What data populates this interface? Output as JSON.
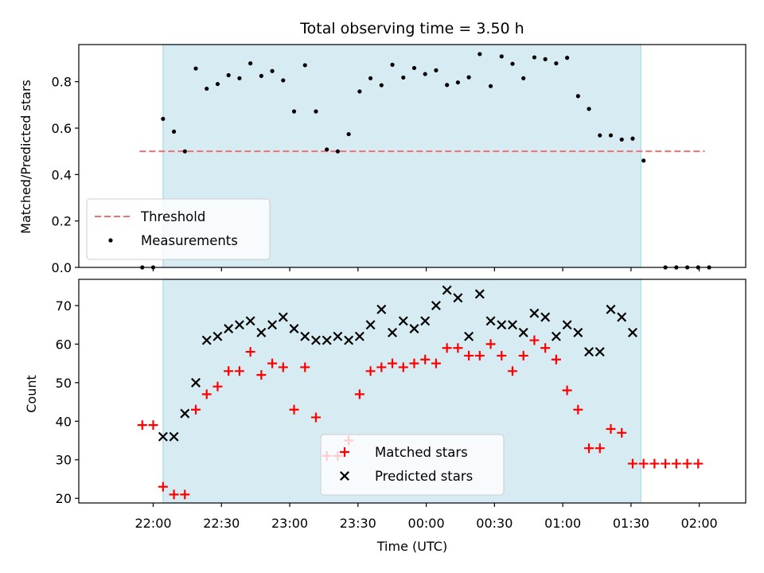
{
  "chart_data": {
    "title": "Total observing time = 3.50 h",
    "xlabel": "Time (UTC)",
    "x_unit": "hours after 21:00 UTC on the x axis (22:00 = 1.0)",
    "xlim": [
      0.455,
      5.34
    ],
    "xticks": [
      {
        "value": 1.0,
        "label": "22:00"
      },
      {
        "value": 1.5,
        "label": "22:30"
      },
      {
        "value": 2.0,
        "label": "23:00"
      },
      {
        "value": 2.5,
        "label": "23:30"
      },
      {
        "value": 3.0,
        "label": "00:00"
      },
      {
        "value": 3.5,
        "label": "00:30"
      },
      {
        "value": 4.0,
        "label": "01:00"
      },
      {
        "value": 4.5,
        "label": "01:30"
      },
      {
        "value": 5.0,
        "label": "02:00"
      }
    ],
    "observing_window": {
      "start": 1.072,
      "end": 4.572,
      "color": "#add8e6"
    },
    "panels": [
      {
        "type": "scatter",
        "ylabel": "Matched/Predicted stars",
        "ylim": [
          0.0,
          0.96
        ],
        "yticks": [
          {
            "value": 0.0,
            "label": "0.0"
          },
          {
            "value": 0.2,
            "label": "0.2"
          },
          {
            "value": 0.4,
            "label": "0.4"
          },
          {
            "value": 0.6,
            "label": "0.6"
          },
          {
            "value": 0.8,
            "label": "0.8"
          }
        ],
        "threshold": {
          "name": "Threshold",
          "y": 0.5,
          "x_start": 0.9,
          "x_end": 5.04,
          "color": "#f07070"
        },
        "series": [
          {
            "name": "Measurements",
            "marker": "dot",
            "color": "#000000",
            "points": [
              [
                0.92,
                0.0
              ],
              [
                1.0,
                0.0
              ],
              [
                1.072,
                0.64
              ],
              [
                1.152,
                0.585
              ],
              [
                1.232,
                0.5
              ],
              [
                1.312,
                0.857
              ],
              [
                1.392,
                0.77
              ],
              [
                1.472,
                0.79
              ],
              [
                1.552,
                0.828
              ],
              [
                1.632,
                0.815
              ],
              [
                1.712,
                0.879
              ],
              [
                1.792,
                0.825
              ],
              [
                1.872,
                0.846
              ],
              [
                1.952,
                0.806
              ],
              [
                2.032,
                0.672
              ],
              [
                2.112,
                0.871
              ],
              [
                2.192,
                0.672
              ],
              [
                2.272,
                0.508
              ],
              [
                2.352,
                0.5
              ],
              [
                2.432,
                0.574
              ],
              [
                2.512,
                0.758
              ],
              [
                2.592,
                0.815
              ],
              [
                2.672,
                0.785
              ],
              [
                2.752,
                0.873
              ],
              [
                2.832,
                0.818
              ],
              [
                2.912,
                0.859
              ],
              [
                2.992,
                0.833
              ],
              [
                3.072,
                0.849
              ],
              [
                3.152,
                0.786
              ],
              [
                3.232,
                0.797
              ],
              [
                3.312,
                0.819
              ],
              [
                3.392,
                0.919
              ],
              [
                3.472,
                0.781
              ],
              [
                3.552,
                0.909
              ],
              [
                3.632,
                0.877
              ],
              [
                3.712,
                0.815
              ],
              [
                3.792,
                0.905
              ],
              [
                3.872,
                0.897
              ],
              [
                3.952,
                0.879
              ],
              [
                4.032,
                0.903
              ],
              [
                4.112,
                0.738
              ],
              [
                4.192,
                0.683
              ],
              [
                4.272,
                0.569
              ],
              [
                4.352,
                0.569
              ],
              [
                4.432,
                0.551
              ],
              [
                4.512,
                0.555
              ],
              [
                4.592,
                0.46
              ],
              [
                4.752,
                0.0
              ],
              [
                4.832,
                0.0
              ],
              [
                4.912,
                0.0
              ],
              [
                4.992,
                0.0
              ],
              [
                5.072,
                0.0
              ]
            ]
          }
        ],
        "legend": {
          "position": "lower-left",
          "entries": [
            "Threshold",
            "Measurements"
          ]
        }
      },
      {
        "type": "scatter",
        "ylabel": "Count",
        "ylim": [
          18.8,
          76.8
        ],
        "yticks": [
          {
            "value": 20,
            "label": "20"
          },
          {
            "value": 30,
            "label": "30"
          },
          {
            "value": 40,
            "label": "40"
          },
          {
            "value": 50,
            "label": "50"
          },
          {
            "value": 60,
            "label": "60"
          },
          {
            "value": 70,
            "label": "70"
          }
        ],
        "series": [
          {
            "name": "Matched stars",
            "marker": "plus",
            "color": "#ff0000",
            "points": [
              [
                0.92,
                39
              ],
              [
                1.0,
                39
              ],
              [
                1.072,
                23
              ],
              [
                1.152,
                21
              ],
              [
                1.232,
                21
              ],
              [
                1.312,
                43
              ],
              [
                1.392,
                47
              ],
              [
                1.472,
                49
              ],
              [
                1.552,
                53
              ],
              [
                1.632,
                53
              ],
              [
                1.712,
                58
              ],
              [
                1.792,
                52
              ],
              [
                1.872,
                55
              ],
              [
                1.952,
                54
              ],
              [
                2.032,
                43
              ],
              [
                2.112,
                54
              ],
              [
                2.192,
                41
              ],
              [
                2.272,
                31
              ],
              [
                2.352,
                31
              ],
              [
                2.432,
                35
              ],
              [
                2.512,
                47
              ],
              [
                2.592,
                53
              ],
              [
                2.672,
                54
              ],
              [
                2.752,
                55
              ],
              [
                2.832,
                54
              ],
              [
                2.912,
                55
              ],
              [
                2.992,
                56
              ],
              [
                3.072,
                55
              ],
              [
                3.152,
                59
              ],
              [
                3.232,
                59
              ],
              [
                3.312,
                57
              ],
              [
                3.392,
                57
              ],
              [
                3.472,
                60
              ],
              [
                3.552,
                57
              ],
              [
                3.632,
                53
              ],
              [
                3.712,
                57
              ],
              [
                3.792,
                61
              ],
              [
                3.872,
                59
              ],
              [
                3.952,
                56
              ],
              [
                4.032,
                48
              ],
              [
                4.112,
                43
              ],
              [
                4.192,
                33
              ],
              [
                4.272,
                33
              ],
              [
                4.352,
                38
              ],
              [
                4.432,
                37
              ],
              [
                4.512,
                29
              ],
              [
                4.592,
                29
              ],
              [
                4.672,
                29
              ],
              [
                4.752,
                29
              ],
              [
                4.832,
                29
              ],
              [
                4.912,
                29
              ],
              [
                4.992,
                29
              ]
            ]
          },
          {
            "name": "Predicted stars",
            "marker": "x",
            "color": "#000000",
            "points": [
              [
                1.072,
                36
              ],
              [
                1.152,
                36
              ],
              [
                1.232,
                42
              ],
              [
                1.312,
                50
              ],
              [
                1.392,
                61
              ],
              [
                1.472,
                62
              ],
              [
                1.552,
                64
              ],
              [
                1.632,
                65
              ],
              [
                1.712,
                66
              ],
              [
                1.792,
                63
              ],
              [
                1.872,
                65
              ],
              [
                1.952,
                67
              ],
              [
                2.032,
                64
              ],
              [
                2.112,
                62
              ],
              [
                2.192,
                61
              ],
              [
                2.272,
                61
              ],
              [
                2.352,
                62
              ],
              [
                2.432,
                61
              ],
              [
                2.512,
                62
              ],
              [
                2.592,
                65
              ],
              [
                2.672,
                69
              ],
              [
                2.752,
                63
              ],
              [
                2.832,
                66
              ],
              [
                2.912,
                64
              ],
              [
                2.992,
                66
              ],
              [
                3.072,
                70
              ],
              [
                3.152,
                74
              ],
              [
                3.232,
                72
              ],
              [
                3.312,
                62
              ],
              [
                3.392,
                73
              ],
              [
                3.472,
                66
              ],
              [
                3.552,
                65
              ],
              [
                3.632,
                65
              ],
              [
                3.712,
                63
              ],
              [
                3.792,
                68
              ],
              [
                3.872,
                67
              ],
              [
                3.952,
                62
              ],
              [
                4.032,
                65
              ],
              [
                4.112,
                63
              ],
              [
                4.192,
                58
              ],
              [
                4.272,
                58
              ],
              [
                4.352,
                69
              ],
              [
                4.432,
                67
              ],
              [
                4.512,
                63
              ]
            ]
          }
        ],
        "legend": {
          "position": "lower-center",
          "entries": [
            "Matched stars",
            "Predicted stars"
          ]
        }
      }
    ]
  }
}
